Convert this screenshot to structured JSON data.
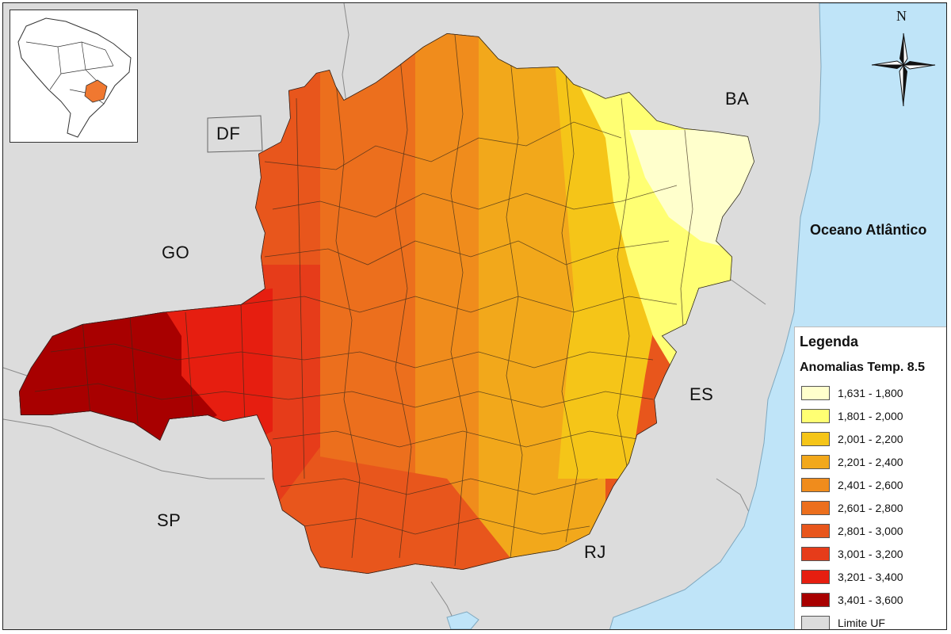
{
  "labels": {
    "df": "DF",
    "ba": "BA",
    "go": "GO",
    "es": "ES",
    "sp": "SP",
    "rj": "RJ",
    "ocean": "Oceano Atlântico",
    "north": "N"
  },
  "legend": {
    "title": "Legenda",
    "subtitle": "Anomalias Temp. 8.5",
    "classes": [
      {
        "label": "1,631 - 1,800",
        "color": "#ffffcc"
      },
      {
        "label": "1,801 - 2,000",
        "color": "#ffff73"
      },
      {
        "label": "2,001 - 2,200",
        "color": "#f5c518"
      },
      {
        "label": "2,201 - 2,400",
        "color": "#f2a81b"
      },
      {
        "label": "2,401 - 2,600",
        "color": "#f08c1c"
      },
      {
        "label": "2,601 - 2,800",
        "color": "#ec6f1d"
      },
      {
        "label": "2,801 - 3,000",
        "color": "#e8561c"
      },
      {
        "label": "3,001 - 3,200",
        "color": "#e63c1a"
      },
      {
        "label": "3,201 - 3,400",
        "color": "#e61e10"
      },
      {
        "label": "3,401 - 3,600",
        "color": "#a80000"
      },
      {
        "label": "Limite UF",
        "color": "#dcdcdc"
      }
    ]
  },
  "colors": {
    "neighbor_states": "#dcdcdc",
    "ocean": "#bfe4f8",
    "inset_highlight": "#f07830"
  }
}
